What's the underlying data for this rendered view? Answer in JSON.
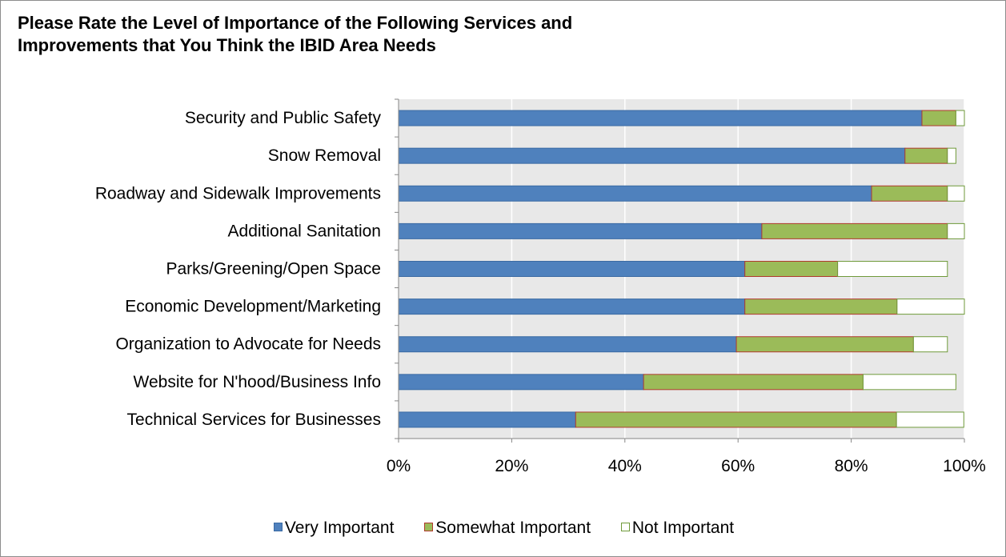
{
  "colors": {
    "very": "#4f81bd",
    "very_stroke": "#3a6aa3",
    "somewhat": "#9bbb59",
    "somewhat_stroke": "#b03a2e",
    "not": "#ffffff",
    "not_stroke": "#6f9a3a",
    "plot_bg": "#e8e8e8",
    "grid": "#ffffff"
  },
  "chart_data": {
    "type": "bar",
    "orientation": "horizontal",
    "stacked": true,
    "title": "Please Rate the Level of Importance of the Following Services and Improvements that You Think the IBID Area Needs",
    "title_lines": [
      "Please Rate the Level of Importance of the Following Services and",
      "Improvements that You Think the IBID Area Needs"
    ],
    "categories": [
      "Security and Public Safety",
      "Snow Removal",
      "Roadway and Sidewalk Improvements",
      "Additional Sanitation",
      "Parks/Greening/Open Space",
      "Economic Development/Marketing",
      "Organization to Advocate for Needs",
      "Website for N'hood/Business Info",
      "Technical Services for Businesses"
    ],
    "series": [
      {
        "name": "Very Important",
        "values": [
          92.5,
          89.5,
          83.6,
          64.2,
          61.2,
          61.2,
          59.7,
          43.3,
          31.3
        ]
      },
      {
        "name": "Somewhat Important",
        "values": [
          6.0,
          7.5,
          13.4,
          32.8,
          16.4,
          26.9,
          31.3,
          38.8,
          56.7
        ]
      },
      {
        "name": "Not Important",
        "values": [
          1.5,
          1.5,
          3.0,
          3.0,
          19.4,
          11.9,
          6.0,
          16.4,
          11.9
        ]
      }
    ],
    "x_ticks": [
      "0%",
      "20%",
      "40%",
      "60%",
      "80%",
      "100%"
    ],
    "x_tick_values": [
      0,
      20,
      40,
      60,
      80,
      100
    ],
    "xlim": [
      0,
      100
    ],
    "grid": true,
    "legend_position": "bottom"
  }
}
